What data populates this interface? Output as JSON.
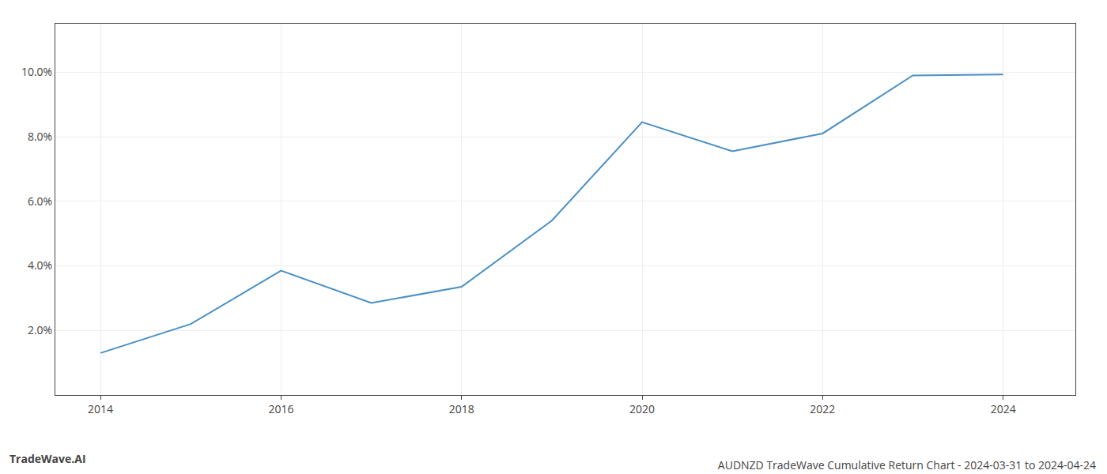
{
  "chart_data": {
    "type": "line",
    "title": "AUDNZD TradeWave Cumulative Return Chart - 2024-03-31 to 2024-04-24",
    "annotations": [
      "TradeWave.AI"
    ],
    "x": [
      2014,
      2015,
      2016,
      2017,
      2018,
      2019,
      2020,
      2021,
      2022,
      2023,
      2024
    ],
    "values": [
      1.3,
      2.2,
      3.85,
      2.85,
      3.35,
      5.4,
      8.45,
      7.55,
      8.1,
      9.9,
      9.93
    ],
    "color": "#4a90c4",
    "xlim": [
      2013.5,
      2024.8
    ],
    "xticks": [
      2014,
      2016,
      2018,
      2020,
      2022,
      2024
    ],
    "ylim": [
      0.0,
      11.5
    ],
    "yticks": [
      {
        "value": 2.0,
        "label": "2.0%"
      },
      {
        "value": 4.0,
        "label": "4.0%"
      },
      {
        "value": 6.0,
        "label": "6.0%"
      },
      {
        "value": 8.0,
        "label": "8.0%"
      },
      {
        "value": 10.0,
        "label": "10.0%"
      }
    ],
    "grid": true
  }
}
